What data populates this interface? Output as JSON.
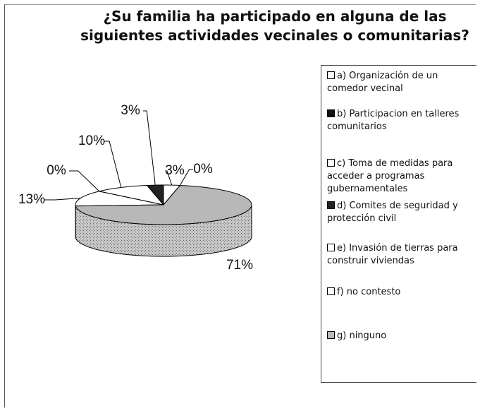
{
  "chart_data": {
    "type": "pie3d",
    "title": "¿Su familia ha participado en alguna de las siguientes actividades vecinales o comunitarias?",
    "categories": [
      "a) Organización de un comedor vecinal",
      "b) Participacion en talleres comunitarios",
      "c) Toma de medidas para acceder a programas gubernamentales",
      "d) Comites de seguridad y protección civil",
      "e) Invasión de tierras para construir viviendas",
      "f) no contesto",
      "g) ninguno"
    ],
    "values": [
      13,
      0,
      10,
      3,
      3,
      0,
      71
    ],
    "value_labels": [
      "13%",
      "0%",
      "10%",
      "3%",
      "3%",
      "0%",
      "71%"
    ],
    "colors": [
      "#ffffff",
      "#111111",
      "#ffffff",
      "#222222",
      "#ffffff",
      "#ffffff",
      "#b8b8b8"
    ]
  }
}
